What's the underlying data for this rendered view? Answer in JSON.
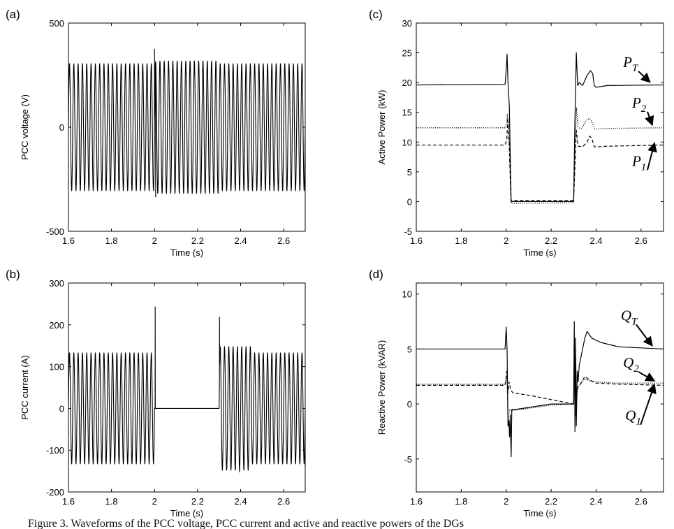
{
  "figure_caption": "Figure 3. Waveforms of the PCC voltage, PCC current and active and reactive powers of the DGs",
  "chart_data": [
    {
      "panel": "(a)",
      "type": "line",
      "ylabel": "PCC voltage (V)",
      "xlabel": "Time (s)",
      "xlim": [
        1.6,
        2.7
      ],
      "ylim": [
        -500,
        500
      ],
      "xticks": [
        "1.6",
        "1.8",
        "2",
        "2.2",
        "2.4",
        "2.6"
      ],
      "yticks": [
        "-500",
        "0",
        "500"
      ],
      "grid": false,
      "series": [
        {
          "kind": "sinusoid",
          "frequency_hz": 50,
          "segments": [
            {
              "t_start": 1.6,
              "t_end": 2.0,
              "amplitude": 305
            },
            {
              "t_start": 2.0,
              "t_end": 2.3,
              "amplitude": 318
            },
            {
              "t_start": 2.3,
              "t_end": 2.7,
              "amplitude": 305
            }
          ],
          "transients": [
            {
              "t": 2.0,
              "peak": 375
            },
            {
              "t": 2.005,
              "min": -335
            }
          ]
        }
      ]
    },
    {
      "panel": "(b)",
      "type": "line",
      "ylabel": "PCC current (A)",
      "xlabel": "Time (s)",
      "xlim": [
        1.6,
        2.7
      ],
      "ylim": [
        -200,
        300
      ],
      "xticks": [
        "1.6",
        "1.8",
        "2",
        "2.2",
        "2.4",
        "2.6"
      ],
      "yticks": [
        "-200",
        "-100",
        "0",
        "100",
        "200",
        "300"
      ],
      "grid": false,
      "series": [
        {
          "kind": "sinusoid",
          "frequency_hz": 50,
          "segments": [
            {
              "t_start": 1.6,
              "t_end": 2.0,
              "amplitude": 133
            },
            {
              "t_start": 2.01,
              "t_end": 2.3,
              "amplitude": 0
            },
            {
              "t_start": 2.3,
              "t_end": 2.45,
              "amplitude": 148
            },
            {
              "t_start": 2.45,
              "t_end": 2.7,
              "amplitude": 133
            }
          ],
          "transients": [
            {
              "t": 2.003,
              "peak": 243
            },
            {
              "t": 2.302,
              "peak": 218
            },
            {
              "t": 2.395,
              "min": -152
            }
          ]
        }
      ]
    },
    {
      "panel": "(c)",
      "type": "line",
      "ylabel": "Active Power (kW)",
      "xlabel": "Time (s)",
      "xlim": [
        1.6,
        2.7
      ],
      "ylim": [
        -5,
        30
      ],
      "xticks": [
        "1.6",
        "1.8",
        "2",
        "2.2",
        "2.4",
        "2.6"
      ],
      "yticks": [
        "-5",
        "0",
        "5",
        "10",
        "15",
        "20",
        "25",
        "30"
      ],
      "grid": false,
      "series": [
        {
          "name": "P_T",
          "label_main": "P",
          "label_sub": "T",
          "style": "solid",
          "x": [
            1.6,
            1.995,
            2.0,
            2.004,
            2.008,
            2.014,
            2.02,
            2.022,
            2.3,
            2.305,
            2.312,
            2.318,
            2.325,
            2.34,
            2.36,
            2.375,
            2.385,
            2.392,
            2.4,
            2.45,
            2.7
          ],
          "y": [
            19.6,
            19.7,
            22.0,
            24.8,
            20.0,
            16.0,
            4.0,
            0.0,
            0.0,
            12.0,
            25.0,
            19.5,
            20.0,
            19.5,
            21.2,
            22.0,
            21.5,
            19.5,
            19.2,
            19.5,
            19.6
          ]
        },
        {
          "name": "P_2",
          "label_main": "P",
          "label_sub": "2",
          "style": "dotted",
          "x": [
            1.6,
            1.995,
            2.002,
            2.005,
            2.012,
            2.02,
            2.022,
            2.3,
            2.306,
            2.313,
            2.32,
            2.335,
            2.355,
            2.37,
            2.38,
            2.392,
            2.4,
            2.45,
            2.7
          ],
          "y": [
            12.4,
            12.4,
            13.0,
            14.7,
            12.0,
            2.0,
            -0.3,
            -0.2,
            8.0,
            15.8,
            12.5,
            12.2,
            13.6,
            14.0,
            13.5,
            12.3,
            12.2,
            12.3,
            12.4
          ]
        },
        {
          "name": "P_1",
          "label_main": "P",
          "label_sub": "1",
          "style": "dashed",
          "x": [
            1.6,
            1.995,
            2.003,
            2.007,
            2.013,
            2.02,
            2.022,
            2.3,
            2.306,
            2.312,
            2.32,
            2.34,
            2.36,
            2.372,
            2.382,
            2.392,
            2.4,
            2.45,
            2.7
          ],
          "y": [
            9.5,
            9.5,
            10.5,
            14.0,
            10.0,
            1.5,
            0.2,
            0.2,
            6.0,
            12.0,
            9.3,
            9.2,
            10.0,
            11.0,
            10.5,
            9.2,
            9.2,
            9.3,
            9.5
          ]
        }
      ],
      "annotations": [
        {
          "series": "P_T",
          "label_x": 2.52,
          "label_y": 22.6,
          "arrow_to": [
            2.64,
            19.7
          ]
        },
        {
          "series": "P_2",
          "label_x": 2.56,
          "label_y": 15.8,
          "arrow_to": [
            2.65,
            12.5
          ]
        },
        {
          "series": "P_1",
          "label_x": 2.56,
          "label_y": 6.0,
          "arrow_to": [
            2.66,
            9.5
          ]
        }
      ]
    },
    {
      "panel": "(d)",
      "type": "line",
      "ylabel": "Reactive Power (kVAR)",
      "xlabel": "Time (s)",
      "xlim": [
        1.6,
        2.7
      ],
      "ylim": [
        -8,
        11
      ],
      "xticks": [
        "1.6",
        "1.8",
        "2",
        "2.2",
        "2.4",
        "2.6"
      ],
      "yticks": [
        "-5",
        "0",
        "5",
        "10"
      ],
      "grid": false,
      "series": [
        {
          "name": "Q_T",
          "label_main": "Q",
          "label_sub": "T",
          "style": "solid",
          "x": [
            1.6,
            1.995,
            2.0,
            2.004,
            2.008,
            2.012,
            2.015,
            2.018,
            2.022,
            2.025,
            2.04,
            2.2,
            2.3,
            2.303,
            2.306,
            2.309,
            2.312,
            2.316,
            2.32,
            2.325,
            2.33,
            2.34,
            2.35,
            2.36,
            2.38,
            2.42,
            2.5,
            2.7
          ],
          "y": [
            5.0,
            5.0,
            7.0,
            5.0,
            -2.0,
            -1.5,
            -3.0,
            -1.0,
            -4.8,
            -0.5,
            -0.5,
            0.0,
            0.0,
            7.5,
            -2.5,
            6.0,
            -2.0,
            3.0,
            2.0,
            3.5,
            4.0,
            5.0,
            6.0,
            6.6,
            6.0,
            5.6,
            5.2,
            5.0
          ]
        },
        {
          "name": "Q_2",
          "label_main": "Q",
          "label_sub": "2",
          "style": "dotted",
          "x": [
            1.6,
            1.995,
            2.003,
            2.008,
            2.015,
            2.025,
            2.1,
            2.2,
            2.3,
            2.305,
            2.31,
            2.318,
            2.33,
            2.35,
            2.37,
            2.4,
            2.5,
            2.7
          ],
          "y": [
            1.8,
            1.8,
            2.5,
            -1.5,
            -0.5,
            -0.6,
            -0.4,
            -0.1,
            0.0,
            3.0,
            -1.0,
            1.5,
            1.8,
            2.3,
            2.1,
            2.0,
            1.9,
            1.9
          ]
        },
        {
          "name": "Q_1",
          "label_main": "Q",
          "label_sub": "1",
          "style": "dashed",
          "x": [
            1.6,
            1.995,
            2.003,
            2.008,
            2.013,
            2.02,
            2.03,
            2.1,
            2.2,
            2.3,
            2.304,
            2.31,
            2.318,
            2.33,
            2.35,
            2.37,
            2.4,
            2.5,
            2.7
          ],
          "y": [
            1.7,
            1.7,
            3.0,
            1.0,
            2.0,
            1.3,
            1.0,
            0.8,
            0.4,
            0.0,
            2.5,
            0.5,
            1.5,
            1.8,
            2.5,
            2.2,
            1.9,
            1.8,
            1.7
          ]
        }
      ],
      "annotations": [
        {
          "series": "Q_T",
          "label_x": 2.51,
          "label_y": 7.6,
          "arrow_to": [
            2.65,
            5.1
          ]
        },
        {
          "series": "Q_2",
          "label_x": 2.52,
          "label_y": 3.3,
          "arrow_to": [
            2.66,
            1.9
          ]
        },
        {
          "series": "Q_1",
          "label_x": 2.53,
          "label_y": -1.5,
          "arrow_to": [
            2.66,
            1.6
          ]
        }
      ]
    }
  ]
}
